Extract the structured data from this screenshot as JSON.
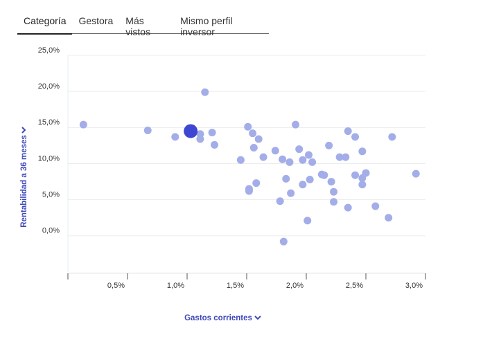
{
  "tabs": [
    "Categoría",
    "Gestora",
    "Más vistos",
    "Mismo perfil inversor"
  ],
  "chart_data": {
    "type": "scatter",
    "x_label": "Gastos corrientes",
    "y_label": "Rentabilidad a 36 meses",
    "xlim": [
      0,
      3.0
    ],
    "ylim": [
      -5,
      25
    ],
    "xticks": [
      {
        "value": 0.5,
        "label": "0,5%"
      },
      {
        "value": 1.0,
        "label": "1,0%"
      },
      {
        "value": 1.5,
        "label": "1,5%"
      },
      {
        "value": 2.0,
        "label": "2,0%"
      },
      {
        "value": 2.5,
        "label": "2,5%"
      },
      {
        "value": 3.0,
        "label": "3,0%"
      }
    ],
    "yticks": [
      {
        "value": 0,
        "label": "0,0%"
      },
      {
        "value": 5,
        "label": "5,0%"
      },
      {
        "value": 10,
        "label": "10,0%"
      },
      {
        "value": 15,
        "label": "15,0%"
      },
      {
        "value": 20,
        "label": "20,0%"
      },
      {
        "value": 25,
        "label": "25,0%"
      }
    ],
    "grid": true,
    "series": [
      {
        "color": "#a3ade8",
        "x": [
          0.13,
          0.67,
          0.9,
          1.11,
          1.11,
          1.15,
          1.21,
          1.23,
          1.45,
          1.51,
          1.55,
          1.6,
          1.56,
          1.64,
          1.52,
          1.52,
          1.58,
          1.74,
          1.8,
          1.86,
          1.91,
          1.94,
          1.97,
          2.02,
          2.05,
          1.83,
          1.78,
          1.87,
          1.97,
          2.03,
          2.01,
          1.81,
          2.13,
          2.15,
          2.19,
          2.21,
          2.23,
          2.23,
          2.28,
          2.33,
          2.35,
          2.35,
          2.41,
          2.41,
          2.47,
          2.47,
          2.5,
          2.47,
          2.58,
          2.69,
          2.72,
          2.92
        ],
        "values": [
          15.4,
          14.6,
          13.7,
          14.1,
          13.4,
          19.9,
          14.3,
          12.6,
          10.5,
          15.1,
          14.2,
          13.4,
          12.2,
          10.9,
          6.5,
          6.2,
          7.3,
          11.8,
          10.6,
          10.2,
          15.4,
          12.0,
          10.5,
          11.2,
          10.2,
          7.9,
          4.8,
          5.9,
          7.1,
          7.8,
          2.1,
          -0.8,
          8.5,
          8.4,
          12.5,
          7.5,
          6.1,
          4.7,
          10.9,
          10.9,
          14.5,
          3.9,
          13.7,
          8.4,
          11.7,
          8.0,
          8.7,
          7.1,
          4.1,
          2.5,
          13.7,
          8.6
        ]
      },
      {
        "color": "#3d47d1",
        "x": [
          1.03
        ],
        "values": [
          14.5
        ]
      }
    ]
  }
}
